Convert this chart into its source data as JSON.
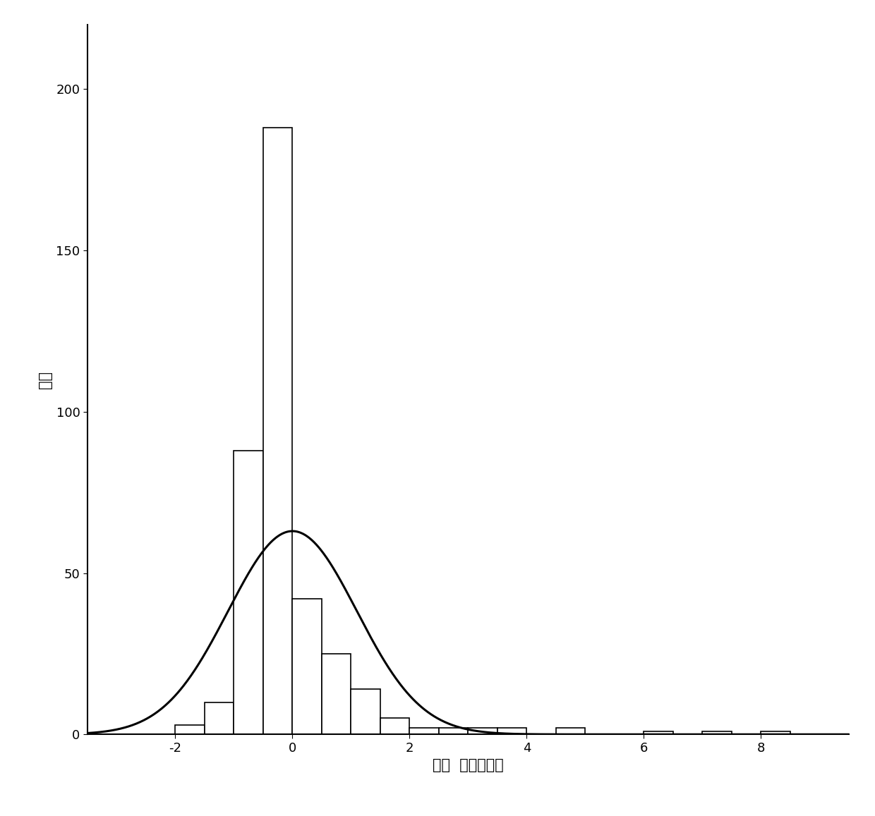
{
  "title": "",
  "xlabel": "回归  标准化残差",
  "ylabel": "频率",
  "xlim": [
    -3.5,
    9.5
  ],
  "ylim": [
    0,
    220
  ],
  "yticks": [
    0,
    50,
    100,
    150,
    200
  ],
  "xticks": [
    -2,
    0,
    2,
    4,
    6,
    8
  ],
  "bar_lefts": [
    -3.0,
    -2.5,
    -2.0,
    -1.5,
    -1.0,
    -0.5,
    0.0,
    0.5,
    1.0,
    1.5,
    2.0,
    2.5,
    3.0,
    3.5,
    4.5,
    5.5,
    6.0,
    7.0,
    8.0
  ],
  "bar_widths": [
    0.5,
    0.5,
    0.5,
    0.5,
    0.5,
    0.5,
    0.5,
    0.5,
    0.5,
    0.5,
    0.5,
    0.5,
    0.5,
    0.5,
    0.5,
    0.5,
    0.5,
    0.5,
    0.5
  ],
  "bar_heights": [
    0,
    0,
    3,
    10,
    88,
    188,
    42,
    25,
    14,
    5,
    2,
    2,
    2,
    2,
    2,
    0,
    1,
    1,
    1
  ],
  "bar_color": "#ffffff",
  "bar_edgecolor": "#000000",
  "curve_mean": 0.0,
  "curve_std": 1.1,
  "curve_scale": 63,
  "background_color": "#ffffff",
  "linewidth": 2.2,
  "bar_linewidth": 1.2,
  "xlabel_fontsize": 15,
  "ylabel_fontsize": 15,
  "tick_fontsize": 13,
  "spine_linewidth": 1.5
}
